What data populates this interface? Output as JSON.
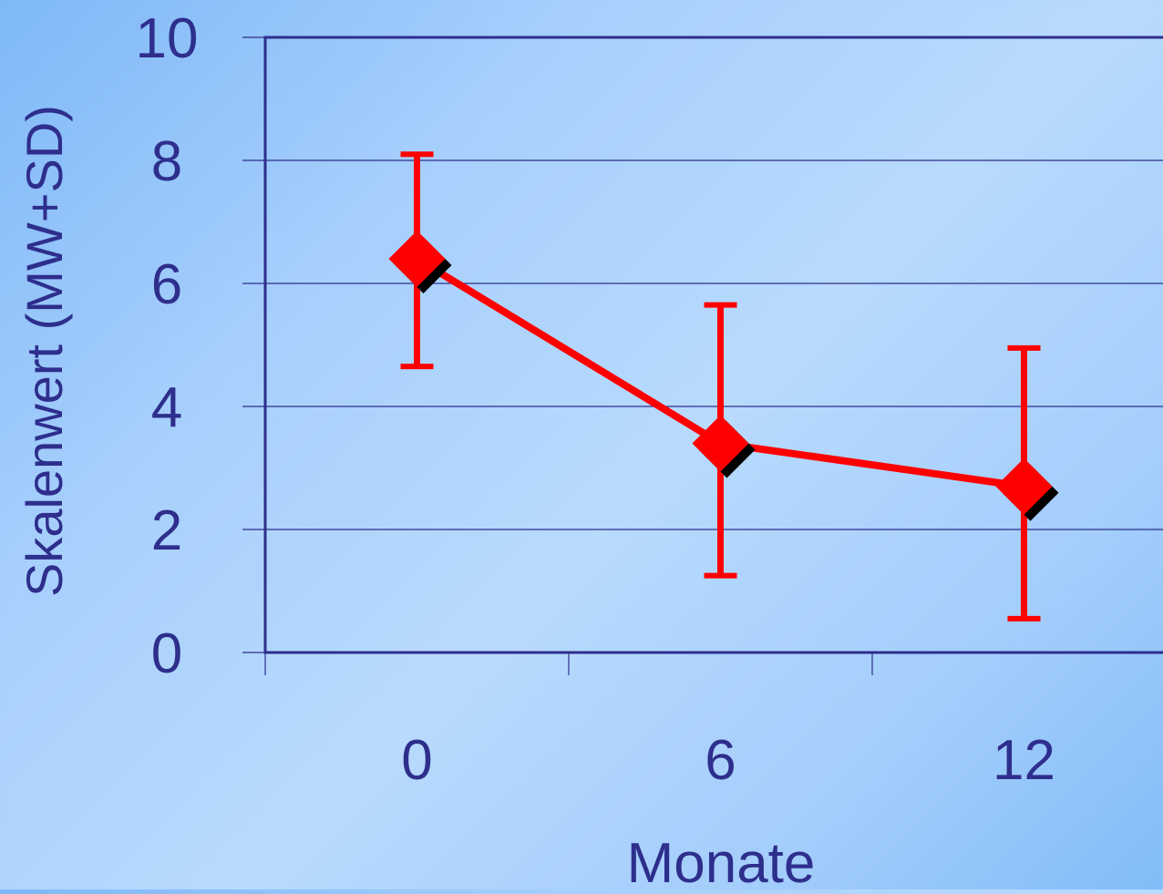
{
  "chart_data": {
    "type": "line",
    "title": "",
    "xlabel": "Monate",
    "ylabel": "Skalenwert (MW+SD)",
    "categories": [
      "0",
      "6",
      "12"
    ],
    "series": [
      {
        "values": [
          6.4,
          3.4,
          2.7
        ],
        "sd_upper": [
          8.1,
          5.65,
          4.95
        ],
        "sd_lower": [
          4.65,
          1.25,
          0.55
        ],
        "color": "#ff0000",
        "marker": "diamond",
        "marker_shadow_color": "#000000"
      }
    ],
    "ylim": [
      0,
      10
    ],
    "yticks": [
      "0",
      "2",
      "4",
      "6",
      "8",
      "10"
    ],
    "grid": true,
    "legend": "none",
    "colors": {
      "axis": "#2e2e8c",
      "text": "#2e2e8c",
      "series": "#ff0000"
    }
  }
}
